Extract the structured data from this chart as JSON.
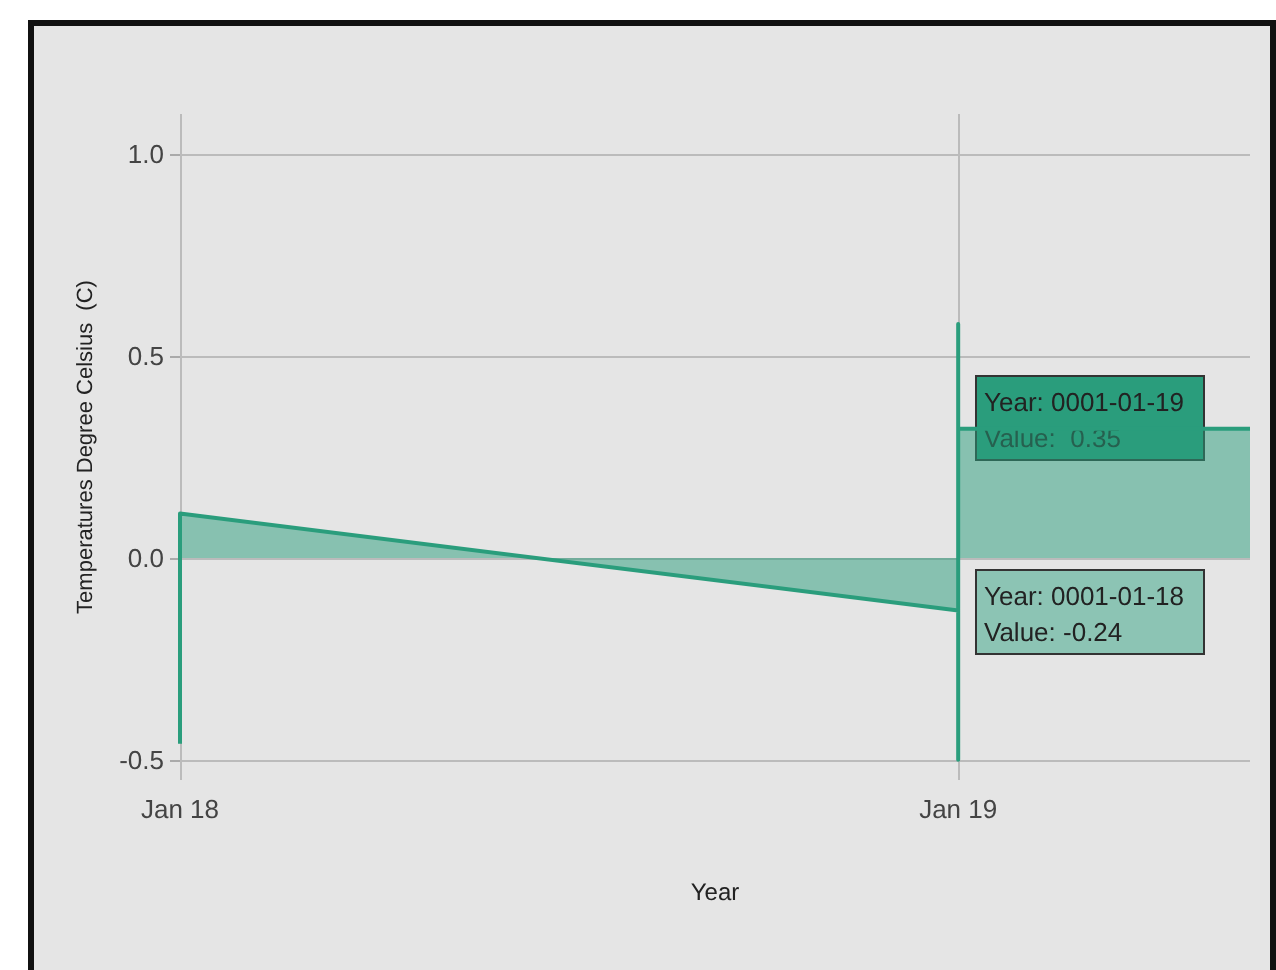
{
  "chart_data": {
    "type": "area",
    "xlabel": "Year",
    "ylabel": "Temperatures Degree Celsius  (C)",
    "x": [
      "--01-18",
      "--01-18",
      "--01-19",
      "--01-19",
      "--01-19",
      "--01-19",
      "--01-19T09:00"
    ],
    "series": [
      {
        "color": "#2a9d7c",
        "values": [
          -0.46,
          0.11,
          -0.13,
          -0.5,
          0.58,
          0.32,
          0.32
        ]
      }
    ],
    "xlim": [
      "--01-18",
      "--01-19T09:00"
    ],
    "xticks": [
      {
        "value": "--01-18",
        "label": "Jan 18"
      },
      {
        "value": "--01-19",
        "label": "Jan 19"
      }
    ],
    "ylim": [
      -0.55,
      1.1
    ],
    "yticks": [
      {
        "value": -0.5,
        "label": "-0.5"
      },
      {
        "value": 0,
        "label": "0.0"
      },
      {
        "value": 0.5,
        "label": "0.5"
      },
      {
        "value": 1,
        "label": "1.0"
      }
    ],
    "grid": true,
    "marker": "none",
    "annotations": [
      "Year: 0001-01-19\nValue:  0.35",
      "Year: 0001-01-18\nValue: -0.24"
    ]
  }
}
